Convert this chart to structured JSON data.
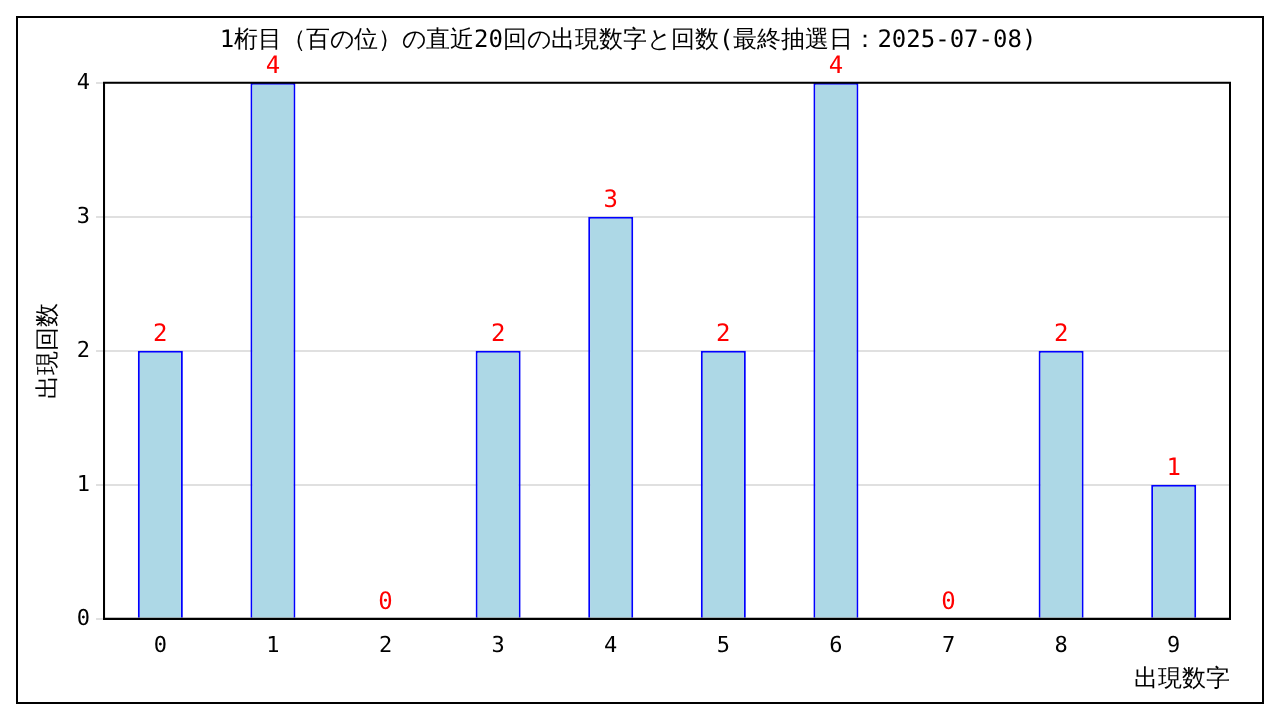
{
  "chart_data": {
    "type": "bar",
    "title": "1桁目（百の位）の直近20回の出現数字と回数(最終抽選日：2025-07-08)",
    "xlabel": "出現数字",
    "ylabel": "出現回数",
    "categories": [
      "0",
      "1",
      "2",
      "3",
      "4",
      "5",
      "6",
      "7",
      "8",
      "9"
    ],
    "values": [
      2,
      4,
      0,
      2,
      3,
      2,
      4,
      0,
      2,
      1
    ],
    "color": "#add8e6",
    "ylim": [
      0,
      4
    ],
    "yticks": [
      0,
      1,
      2,
      3,
      4
    ],
    "grid": "y",
    "data_labels": true
  }
}
